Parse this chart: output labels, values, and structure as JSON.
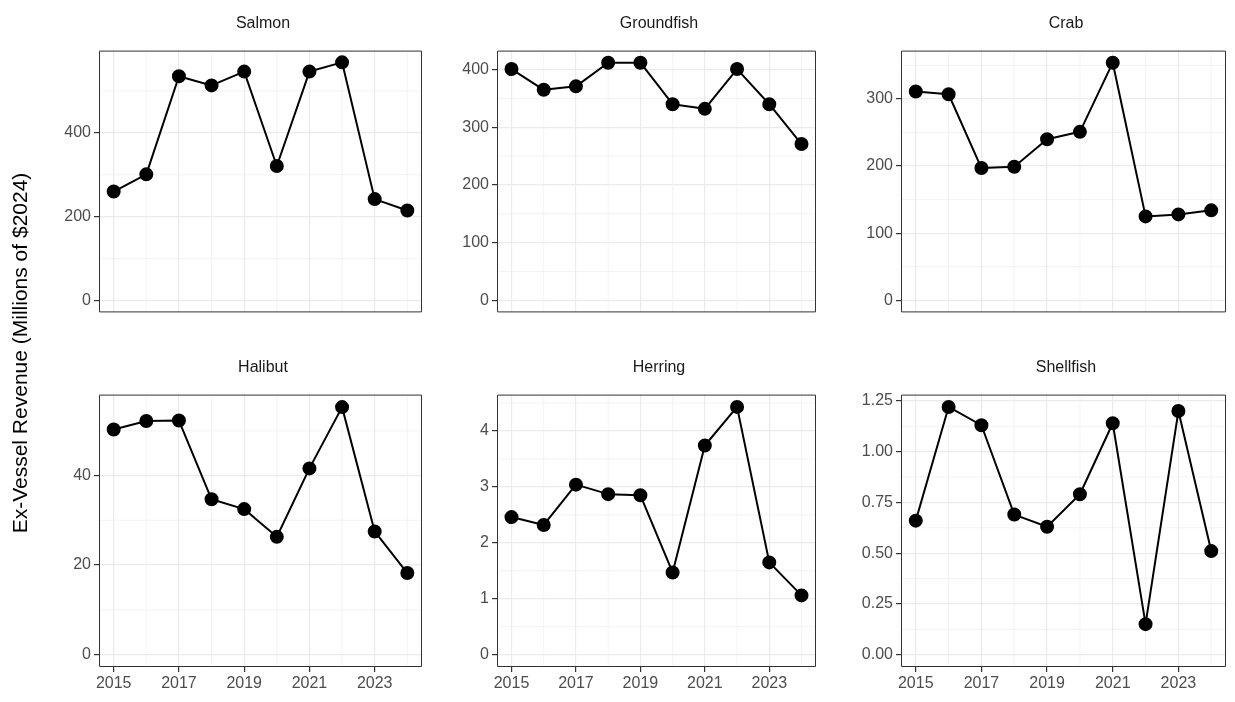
{
  "chart_data": [
    {
      "type": "line",
      "title": "Salmon",
      "ylabel": "Ex-Vessel Revenue (Millions of $2024)",
      "x": [
        2015,
        2016,
        2017,
        2018,
        2019,
        2020,
        2021,
        2022,
        2023,
        2024
      ],
      "values": [
        260,
        301,
        535,
        513,
        546,
        321,
        546,
        568,
        242,
        215
      ],
      "color": "#000000",
      "xlim": [
        2014.55,
        2024.45
      ],
      "xticks": [
        2015,
        2017,
        2019,
        2021,
        2023
      ],
      "ylim": [
        -28,
        596
      ],
      "yticks": [
        0,
        200,
        400
      ],
      "grid": true,
      "marker": "circle",
      "tick_labels": "y"
    },
    {
      "type": "line",
      "title": "Groundfish",
      "x": [
        2015,
        2016,
        2017,
        2018,
        2019,
        2020,
        2021,
        2022,
        2023,
        2024
      ],
      "values": [
        401,
        365,
        371,
        412,
        412,
        340,
        332,
        401,
        340,
        271
      ],
      "color": "#000000",
      "xlim": [
        2014.55,
        2024.45
      ],
      "xticks": [
        2015,
        2017,
        2019,
        2021,
        2023
      ],
      "ylim": [
        -21,
        433
      ],
      "yticks": [
        0,
        100,
        200,
        300,
        400
      ],
      "grid": true,
      "marker": "circle",
      "tick_labels": "y"
    },
    {
      "type": "line",
      "title": "Crab",
      "x": [
        2015,
        2016,
        2017,
        2018,
        2019,
        2020,
        2021,
        2022,
        2023,
        2024
      ],
      "values": [
        311,
        307,
        197,
        199,
        240,
        251,
        354,
        125,
        128,
        134
      ],
      "color": "#000000",
      "xlim": [
        2014.55,
        2024.45
      ],
      "xticks": [
        2015,
        2017,
        2019,
        2021,
        2023
      ],
      "ylim": [
        -18,
        372
      ],
      "yticks": [
        0,
        100,
        200,
        300
      ],
      "grid": true,
      "marker": "circle",
      "tick_labels": "y"
    },
    {
      "type": "line",
      "title": "Halibut",
      "x": [
        2015,
        2016,
        2017,
        2018,
        2019,
        2020,
        2021,
        2022,
        2023,
        2024
      ],
      "values": [
        50.3,
        52.2,
        52.3,
        34.7,
        32.5,
        26.3,
        41.6,
        55.3,
        27.5,
        18.2
      ],
      "color": "#000000",
      "xlim": [
        2014.55,
        2024.45
      ],
      "xticks": [
        2015,
        2017,
        2019,
        2021,
        2023
      ],
      "ylim": [
        -2.8,
        58.1
      ],
      "yticks": [
        0,
        20,
        40
      ],
      "grid": true,
      "marker": "circle"
    },
    {
      "type": "line",
      "title": "Herring",
      "x": [
        2015,
        2016,
        2017,
        2018,
        2019,
        2020,
        2021,
        2022,
        2023,
        2024
      ],
      "values": [
        2.46,
        2.32,
        3.04,
        2.87,
        2.85,
        1.47,
        3.74,
        4.43,
        1.65,
        1.06
      ],
      "color": "#000000",
      "xlim": [
        2014.55,
        2024.45
      ],
      "xticks": [
        2015,
        2017,
        2019,
        2021,
        2023
      ],
      "ylim": [
        -0.22,
        4.65
      ],
      "yticks": [
        0,
        1,
        2,
        3,
        4
      ],
      "grid": true,
      "marker": "circle"
    },
    {
      "type": "line",
      "title": "Shellfish",
      "x": [
        2015,
        2016,
        2017,
        2018,
        2019,
        2020,
        2021,
        2022,
        2023,
        2024
      ],
      "values": [
        0.66,
        1.22,
        1.13,
        0.69,
        0.63,
        0.79,
        1.14,
        0.15,
        1.2,
        0.51
      ],
      "color": "#000000",
      "xlim": [
        2014.55,
        2024.45
      ],
      "xticks": [
        2015,
        2017,
        2019,
        2021,
        2023
      ],
      "ylim": [
        -0.061,
        1.281
      ],
      "yticks": [
        {
          "value": 0,
          "label": "0.00"
        },
        {
          "value": 0.25,
          "label": "0.25"
        },
        {
          "value": 0.5,
          "label": "0.50"
        },
        {
          "value": 0.75,
          "label": "0.75"
        },
        {
          "value": 1,
          "label": "1.00"
        },
        {
          "value": 1.25,
          "label": "1.25"
        }
      ],
      "grid": true,
      "marker": "circle"
    }
  ]
}
